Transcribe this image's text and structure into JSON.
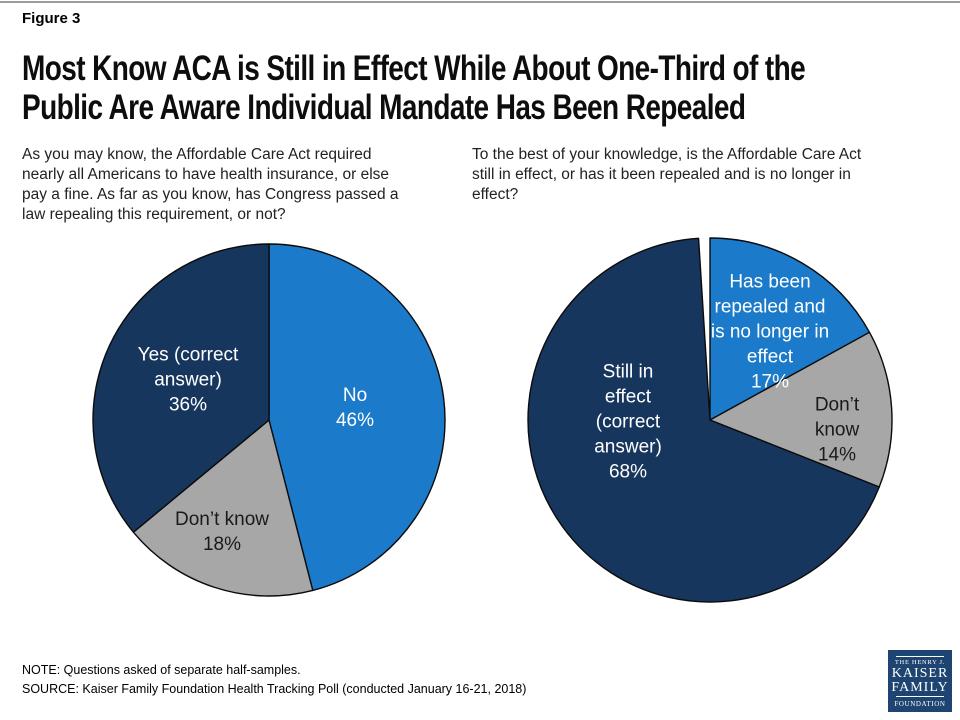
{
  "figure_label": "Figure 3",
  "title": "Most Know ACA is Still in Effect While About One-Third of the\nPublic Are Aware Individual Mandate Has Been Repealed",
  "note": "NOTE: Questions asked of separate half-samples.",
  "source": "SOURCE: Kaiser Family Foundation Health Tracking Poll (conducted January 16-21, 2018)",
  "logo": {
    "line1": "THE HENRY J.",
    "line2": "KAISER",
    "line3": "FAMILY",
    "line4": "FOUNDATION"
  },
  "colors": {
    "navy": "#17365d",
    "bright_blue": "#1b7ac9",
    "gray": "#a7a7a7",
    "slice_outline": "#0b0b0b",
    "label_light": "#ffffff",
    "label_dark": "#1a1a1a",
    "logo_navy": "#1e4472"
  },
  "chart_data": [
    {
      "type": "pie",
      "question": "As you may know, the Affordable Care Act required\nnearly all Americans to have health insurance, or else\npay a fine. As far as you know, has Congress passed a\nlaw repealing this requirement, or not?",
      "start_angle_deg": 0,
      "direction": "clockwise",
      "labels_on_slices": true,
      "legend": "none",
      "slices": [
        {
          "label": "No",
          "value": 46,
          "color": "#1b7ac9",
          "text_color": "#ffffff",
          "display": "No\n46%"
        },
        {
          "label": "Don’t know",
          "value": 18,
          "color": "#a7a7a7",
          "text_color": "#1a1a1a",
          "display": "Don’t know\n18%"
        },
        {
          "label": "Yes (correct answer)",
          "value": 36,
          "color": "#17365d",
          "text_color": "#ffffff",
          "display": "Yes (correct\nanswer)\n36%"
        }
      ]
    },
    {
      "type": "pie",
      "question": "To the best of your knowledge, is the Affordable Care Act\nstill in effect, or has it been repealed and is no longer in\neffect?",
      "start_angle_deg": 0,
      "direction": "clockwise",
      "labels_on_slices": true,
      "legend": "none",
      "slices": [
        {
          "label": "Has been repealed and is no longer in effect",
          "value": 17,
          "color": "#1b7ac9",
          "text_color": "#ffffff",
          "display": "Has been\nrepealed and\nis no longer in\neffect\n17%"
        },
        {
          "label": "Don’t know",
          "value": 14,
          "color": "#a7a7a7",
          "text_color": "#1a1a1a",
          "display": "Don’t know\n14%"
        },
        {
          "label": "Still in effect (correct answer)",
          "value": 68,
          "color": "#17365d",
          "text_color": "#ffffff",
          "display": "Still in\neffect\n(correct\nanswer)\n68%"
        }
      ]
    }
  ]
}
